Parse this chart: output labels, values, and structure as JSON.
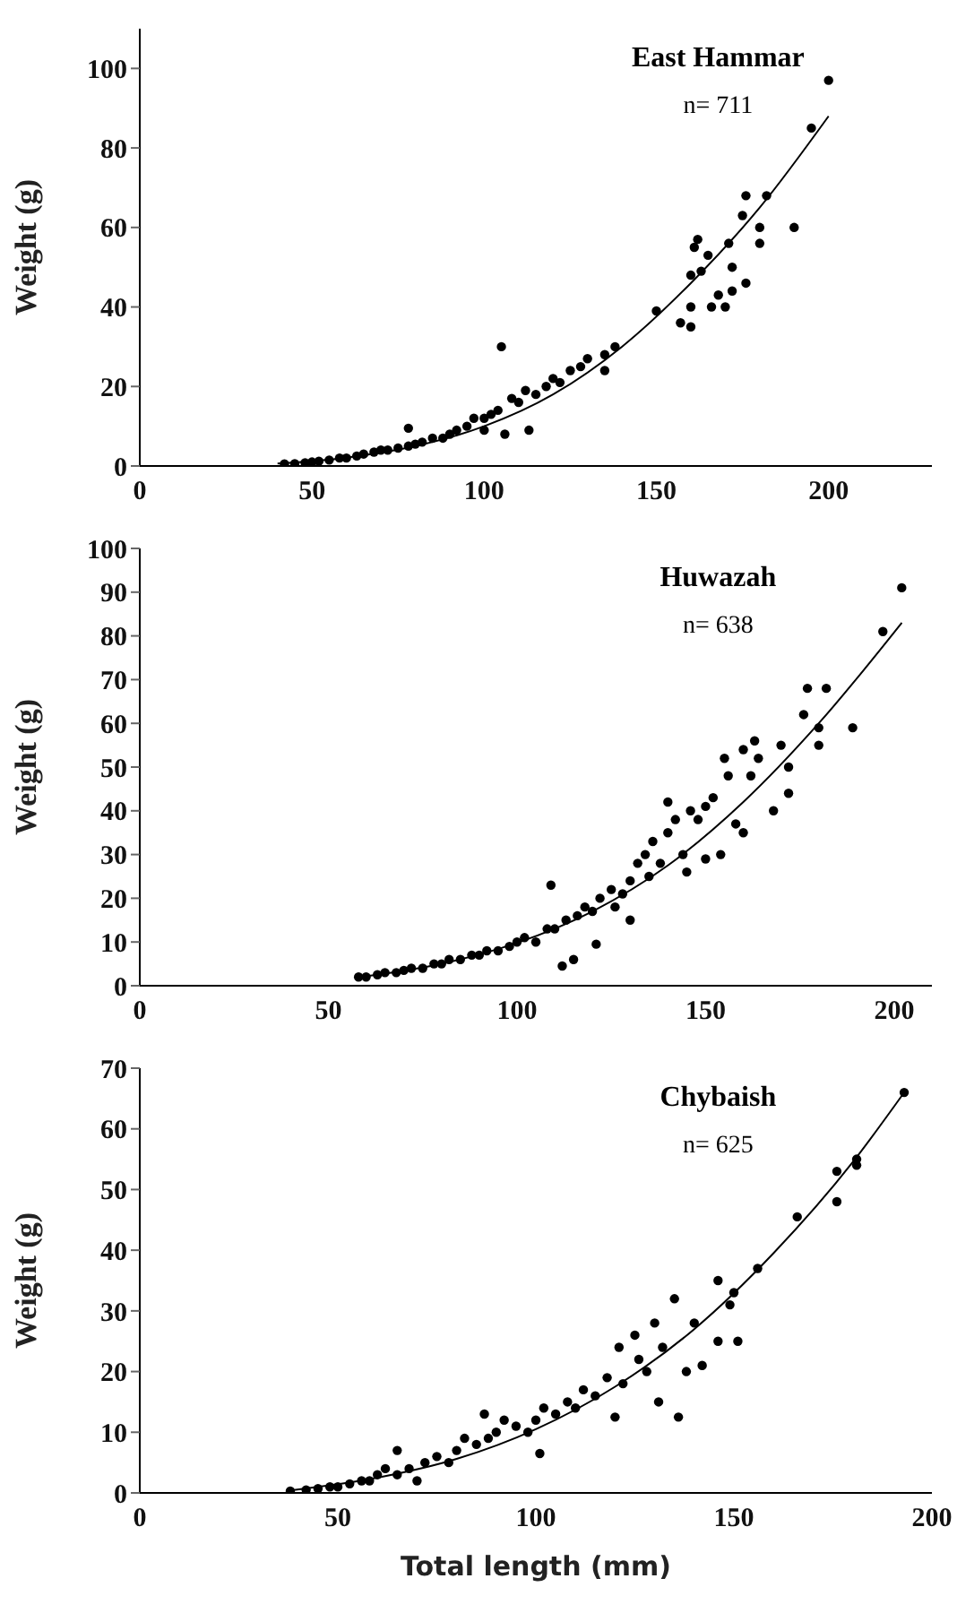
{
  "chart_data": [
    {
      "type": "scatter",
      "title": "East Hammar",
      "ylabel": "Weight (g)",
      "annotations": [
        "n= 711"
      ],
      "xlim": [
        0,
        230
      ],
      "xticks": [
        0,
        50,
        100,
        150,
        200
      ],
      "ylim": [
        0,
        110
      ],
      "yticks": [
        0,
        20,
        40,
        60,
        80,
        100
      ],
      "series": [
        {
          "color": "#000000",
          "marker": "circle",
          "x": [
            42,
            45,
            48,
            50,
            52,
            55,
            58,
            60,
            63,
            65,
            68,
            70,
            72,
            75,
            78,
            78,
            80,
            82,
            85,
            88,
            90,
            92,
            95,
            97,
            100,
            100,
            102,
            104,
            105,
            106,
            108,
            110,
            112,
            113,
            115,
            118,
            120,
            122,
            125,
            128,
            130,
            135,
            135,
            138,
            150,
            157,
            160,
            160,
            160,
            161,
            162,
            163,
            165,
            166,
            168,
            170,
            171,
            172,
            172,
            175,
            176,
            176,
            180,
            180,
            182,
            190,
            195,
            200
          ],
          "values": [
            0.5,
            0.6,
            0.8,
            1,
            1.2,
            1.5,
            2,
            2,
            2.5,
            3,
            3.5,
            4,
            4,
            4.5,
            9.5,
            5,
            5.5,
            6,
            7,
            7,
            8,
            9,
            10,
            12,
            12,
            9,
            13,
            14,
            30,
            8,
            17,
            16,
            19,
            9,
            18,
            20,
            22,
            21,
            24,
            25,
            27,
            24,
            28,
            30,
            39,
            36,
            35,
            40,
            48,
            55,
            57,
            49,
            53,
            40,
            43,
            40,
            56,
            50,
            44,
            63,
            68,
            46,
            60,
            56,
            68,
            60,
            85,
            97
          ]
        },
        {
          "type": "line",
          "color": "#000000",
          "marker": "none",
          "x": [
            40,
            60,
            80,
            100,
            120,
            140,
            160,
            180,
            200
          ],
          "values": [
            0.6,
            2.1,
            5,
            10,
            18,
            30,
            46,
            65,
            88
          ]
        }
      ]
    },
    {
      "type": "scatter",
      "title": "Huwazah",
      "ylabel": "Weight (g)",
      "annotations": [
        "n= 638"
      ],
      "xlim": [
        0,
        210
      ],
      "xticks": [
        0,
        50,
        100,
        150,
        200
      ],
      "ylim": [
        0,
        100
      ],
      "yticks": [
        0,
        10,
        20,
        30,
        40,
        50,
        60,
        70,
        80,
        90,
        100
      ],
      "series": [
        {
          "color": "#000000",
          "marker": "circle",
          "x": [
            58,
            60,
            63,
            65,
            68,
            70,
            72,
            75,
            78,
            80,
            82,
            85,
            88,
            90,
            92,
            95,
            98,
            100,
            102,
            105,
            108,
            109,
            110,
            112,
            113,
            115,
            116,
            118,
            120,
            121,
            122,
            125,
            126,
            128,
            130,
            130,
            132,
            134,
            135,
            136,
            138,
            140,
            140,
            142,
            144,
            145,
            146,
            148,
            150,
            150,
            152,
            154,
            155,
            156,
            158,
            160,
            160,
            162,
            163,
            164,
            168,
            170,
            172,
            172,
            176,
            177,
            180,
            180,
            182,
            189,
            197,
            202
          ],
          "values": [
            2,
            2,
            2.5,
            3,
            3,
            3.5,
            4,
            4,
            5,
            5,
            6,
            6,
            7,
            7,
            8,
            8,
            9,
            10,
            11,
            10,
            13,
            23,
            13,
            4.5,
            15,
            6,
            16,
            18,
            17,
            9.5,
            20,
            22,
            18,
            21,
            24,
            15,
            28,
            30,
            25,
            33,
            28,
            35,
            42,
            38,
            30,
            26,
            40,
            38,
            41,
            29,
            43,
            30,
            52,
            48,
            37,
            54,
            35,
            48,
            56,
            52,
            40,
            55,
            50,
            44,
            62,
            68,
            59,
            55,
            68,
            59,
            81,
            91
          ]
        },
        {
          "type": "line",
          "color": "#000000",
          "marker": "none",
          "x": [
            58,
            80,
            100,
            120,
            140,
            160,
            180,
            202
          ],
          "values": [
            1.9,
            5,
            9.8,
            17,
            27.5,
            42,
            60,
            83
          ]
        }
      ]
    },
    {
      "type": "scatter",
      "title": "Chybaish",
      "ylabel": "Weight (g)",
      "xlabel": "Total length (mm)",
      "annotations": [
        "n= 625"
      ],
      "xlim": [
        0,
        200
      ],
      "xticks": [
        0,
        50,
        100,
        150,
        200
      ],
      "ylim": [
        0,
        70
      ],
      "yticks": [
        0,
        10,
        20,
        30,
        40,
        50,
        60,
        70
      ],
      "series": [
        {
          "color": "#000000",
          "marker": "circle",
          "x": [
            38,
            42,
            45,
            48,
            50,
            53,
            56,
            58,
            60,
            62,
            65,
            65,
            68,
            70,
            72,
            75,
            78,
            80,
            82,
            85,
            87,
            88,
            90,
            92,
            95,
            98,
            100,
            101,
            102,
            105,
            108,
            110,
            112,
            115,
            118,
            120,
            121,
            122,
            125,
            126,
            128,
            130,
            131,
            132,
            135,
            136,
            138,
            140,
            142,
            146,
            146,
            149,
            150,
            151,
            156,
            166,
            176,
            176,
            181,
            181,
            193
          ],
          "values": [
            0.3,
            0.5,
            0.7,
            1,
            1,
            1.5,
            2,
            2,
            3,
            4,
            7,
            3,
            4,
            2,
            5,
            6,
            5,
            7,
            9,
            8,
            13,
            9,
            10,
            12,
            11,
            10,
            12,
            6.5,
            14,
            13,
            15,
            14,
            17,
            16,
            19,
            12.5,
            24,
            18,
            26,
            22,
            20,
            28,
            15,
            24,
            32,
            12.5,
            20,
            28,
            21,
            35,
            25,
            31,
            33,
            25,
            37,
            45.5,
            48,
            53,
            55,
            54,
            66
          ]
        },
        {
          "type": "line",
          "color": "#000000",
          "marker": "none",
          "x": [
            38,
            60,
            80,
            100,
            120,
            140,
            160,
            180,
            193
          ],
          "values": [
            0.4,
            2.5,
            5.6,
            10.5,
            17.5,
            27,
            39.5,
            54.5,
            66
          ]
        }
      ]
    }
  ]
}
